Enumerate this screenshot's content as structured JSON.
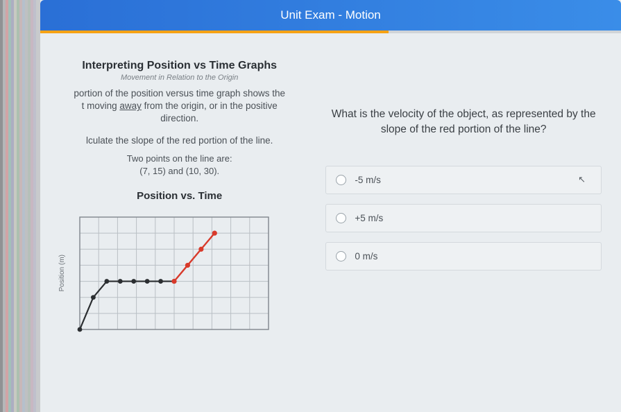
{
  "header": {
    "title": "Unit Exam - Motion",
    "bar_gradient": [
      "#2a6fd6",
      "#3a8de8"
    ],
    "accent_color": "#f5a215",
    "accent_progress_pct": 60
  },
  "left": {
    "title": "Interpreting Position vs Time Graphs",
    "subtitle": "Movement in Relation to the Origin",
    "para_prefix": "portion of the position versus time graph shows the",
    "para_line2_prefix": "t moving ",
    "para_underlined": "away",
    "para_line2_suffix": " from the origin, or in the positive",
    "para_line3": "direction.",
    "line_slope": "lculate the slope of the red portion of the line.",
    "points_intro": "Two points on the line are:",
    "points_values": "(7, 15) and (10, 30).",
    "chart": {
      "title": "Position vs. Time",
      "ylabel": "Position (m)",
      "type": "line",
      "grid_color": "#b9bfc4",
      "background_color": "#e9edf0",
      "xlim": [
        0,
        14
      ],
      "ylim": [
        0,
        35
      ],
      "x_cells": 10,
      "y_cells": 7,
      "series": [
        {
          "name": "black",
          "color": "#2b2e31",
          "line_width": 2.2,
          "marker": "circle",
          "marker_size": 3.4,
          "points": [
            [
              0,
              0
            ],
            [
              1,
              10
            ],
            [
              2,
              15
            ],
            [
              3,
              15
            ],
            [
              4,
              15
            ],
            [
              5,
              15
            ],
            [
              6,
              15
            ],
            [
              7,
              15
            ]
          ]
        },
        {
          "name": "red",
          "color": "#d83a2b",
          "line_width": 2.4,
          "marker": "circle",
          "marker_size": 3.6,
          "points": [
            [
              7,
              15
            ],
            [
              8,
              20
            ],
            [
              9,
              25
            ],
            [
              10,
              30
            ]
          ]
        }
      ]
    }
  },
  "right": {
    "question": "What is the velocity of the object, as represented by the slope of the red portion of the line?",
    "options": [
      {
        "label": "-5 m/s",
        "show_cursor": true
      },
      {
        "label": "+5 m/s",
        "show_cursor": false
      },
      {
        "label": "0 m/s",
        "show_cursor": false
      }
    ],
    "option_bg": "#eef1f3",
    "option_border": "#d4d9dd"
  }
}
